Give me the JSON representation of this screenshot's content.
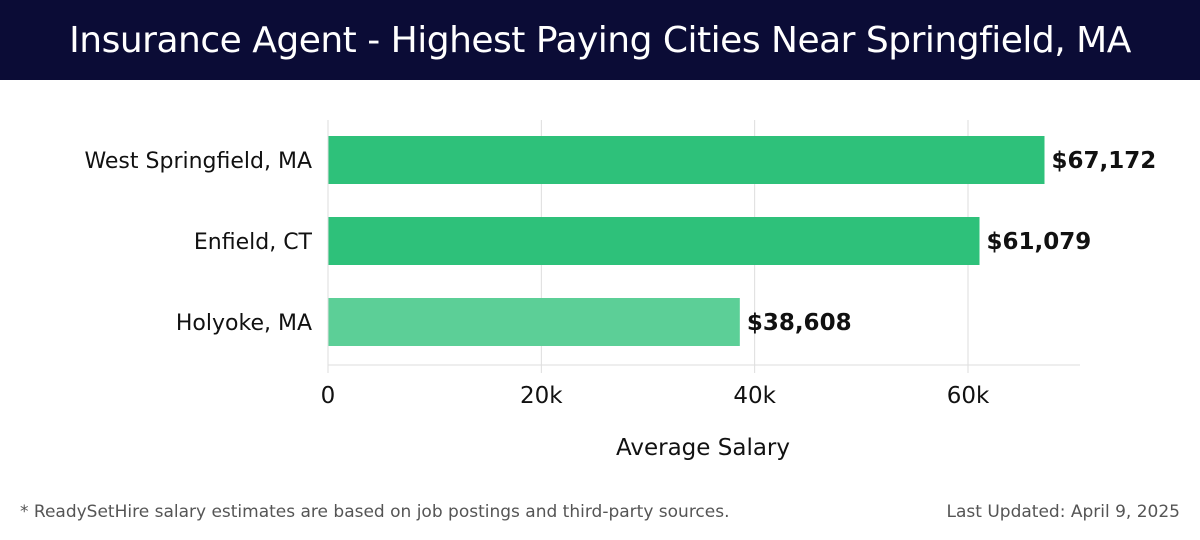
{
  "header": {
    "title": "Insurance Agent - Highest Paying Cities Near Springfield, MA"
  },
  "colors": {
    "header_bg": "#0b0c36",
    "bar_primary": "#2ec17a",
    "bar_secondary": "#5ccf97",
    "grid": "#dddddd"
  },
  "chart_data": {
    "type": "bar",
    "orientation": "horizontal",
    "categories": [
      "West Springfield, MA",
      "Enfield, CT",
      "Holyoke, MA"
    ],
    "values": [
      67172,
      61079,
      38608
    ],
    "value_labels": [
      "$67,172",
      "$61,079",
      "$38,608"
    ],
    "xlabel": "Average Salary",
    "ylabel": "",
    "xlim": [
      0,
      70500
    ],
    "xticks": [
      0,
      20000,
      40000,
      60000
    ],
    "xtick_labels": [
      "0",
      "20k",
      "40k",
      "60k"
    ],
    "grid": true
  },
  "footer": {
    "note": "* ReadySetHire salary estimates are based on job postings and third-party sources.",
    "updated": "Last Updated: April 9, 2025"
  }
}
